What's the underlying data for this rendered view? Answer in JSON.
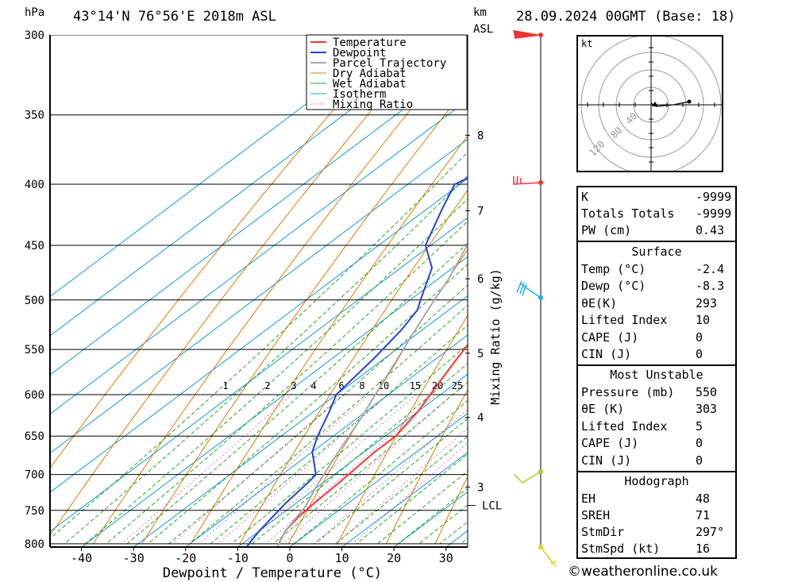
{
  "header": {
    "hpa_label": "hPa",
    "location": "43°14'N  76°56'E  2018m  ASL",
    "km_label": "km",
    "asl_label": "ASL",
    "datetime": "28.09.2024  00GMT  (Base: 18)"
  },
  "colors": {
    "temperature": "#ff3333",
    "dewpoint": "#2244dd",
    "parcel": "#aaaaaa",
    "dry_adiabat": "#e07b00",
    "wet_adiabat": "#22aa22",
    "isotherm": "#1199dd",
    "mixing_ratio": "#cc00aa"
  },
  "legend": [
    "Temperature",
    "Dewpoint",
    "Parcel Trajectory",
    "Dry Adiabat",
    "Wet Adiabat",
    "Isotherm",
    "Mixing Ratio"
  ],
  "chart_data": {
    "type": "line",
    "title": "",
    "xlabel": "Dewpoint / Temperature (°C)",
    "ylabel": "hPa",
    "y2label": "Mixing Ratio (g/kg)",
    "xlim": [
      -47,
      33
    ],
    "ylim": [
      805,
      300
    ],
    "x_ticks": [
      -40,
      -30,
      -20,
      -10,
      0,
      10,
      20,
      30
    ],
    "pressure_ticks": [
      300,
      350,
      400,
      450,
      500,
      550,
      600,
      650,
      700,
      750,
      800
    ],
    "km_ticks": [
      {
        "label": "8",
        "p": 364
      },
      {
        "label": "7",
        "p": 421
      },
      {
        "label": "6",
        "p": 480
      },
      {
        "label": "5",
        "p": 554
      },
      {
        "label": "4",
        "p": 627
      },
      {
        "label": "3",
        "p": 717
      }
    ],
    "lcl": {
      "label": "LCL",
      "p": 743
    },
    "mixing_ratio_labels": [
      "1",
      "2",
      "3",
      "4",
      "6",
      "8",
      "10",
      "15",
      "20",
      "25"
    ],
    "series": [
      {
        "name": "Temperature",
        "points": [
          [
            -2.4,
            805
          ],
          [
            -3.5,
            795
          ],
          [
            -5,
            780
          ],
          [
            -6,
            760
          ],
          [
            -6.5,
            740
          ],
          [
            -7,
            710
          ],
          [
            -7.5,
            690
          ],
          [
            -8,
            670
          ],
          [
            -8,
            650
          ],
          [
            -10,
            620
          ],
          [
            -13,
            590
          ],
          [
            -16,
            560
          ],
          [
            -19,
            530
          ],
          [
            -22,
            500
          ],
          [
            -23.5,
            470
          ],
          [
            -26,
            450
          ],
          [
            -29,
            420
          ],
          [
            -32,
            400
          ],
          [
            -36,
            375
          ],
          [
            -40,
            350
          ],
          [
            -45,
            325
          ],
          [
            -50,
            300
          ]
        ]
      },
      {
        "name": "Dewpoint",
        "points": [
          [
            -8.3,
            805
          ],
          [
            -9,
            795
          ],
          [
            -10,
            780
          ],
          [
            -11,
            760
          ],
          [
            -12,
            740
          ],
          [
            -13,
            710
          ],
          [
            -13.5,
            700
          ],
          [
            -20,
            670
          ],
          [
            -23,
            650
          ],
          [
            -27,
            620
          ],
          [
            -30,
            600
          ],
          [
            -31,
            580
          ],
          [
            -32,
            560
          ],
          [
            -34,
            530
          ],
          [
            -36,
            510
          ],
          [
            -38,
            500
          ],
          [
            -44,
            470
          ],
          [
            -51,
            450
          ],
          [
            -57,
            420
          ],
          [
            -61,
            400
          ],
          [
            -55,
            370
          ],
          [
            -50,
            350
          ],
          [
            -55,
            325
          ],
          [
            -60,
            300
          ]
        ]
      },
      {
        "name": "Parcel Trajectory",
        "points": [
          [
            -2.4,
            805
          ],
          [
            -5,
            780
          ],
          [
            -7.5,
            743
          ],
          [
            -10,
            720
          ],
          [
            -13,
            690
          ],
          [
            -16,
            660
          ],
          [
            -19,
            630
          ],
          [
            -22.5,
            600
          ],
          [
            -26,
            570
          ],
          [
            -30,
            540
          ],
          [
            -34,
            510
          ],
          [
            -38,
            480
          ],
          [
            -43,
            450
          ],
          [
            -48,
            420
          ],
          [
            -53,
            395
          ],
          [
            -59,
            370
          ],
          [
            -64,
            350
          ],
          [
            -71,
            325
          ],
          [
            -78,
            300
          ]
        ]
      }
    ]
  },
  "hodograph": {
    "unit_label": "kt",
    "ring_labels": [
      "40",
      "80",
      "120"
    ]
  },
  "indices": {
    "top": [
      {
        "label": "K",
        "value": "-9999"
      },
      {
        "label": "Totals Totals",
        "value": "-9999"
      },
      {
        "label": "PW (cm)",
        "value": "0.43"
      }
    ],
    "surface": {
      "title": "Surface",
      "rows": [
        {
          "label": "Temp (°C)",
          "value": "-2.4"
        },
        {
          "label": "Dewp (°C)",
          "value": "-8.3"
        },
        {
          "label": "θE(K)",
          "value": "293"
        },
        {
          "label": "Lifted Index",
          "value": "10"
        },
        {
          "label": "CAPE (J)",
          "value": "0"
        },
        {
          "label": "CIN (J)",
          "value": "0"
        }
      ]
    },
    "most_unstable": {
      "title": "Most Unstable",
      "rows": [
        {
          "label": "Pressure (mb)",
          "value": "550"
        },
        {
          "label": "θE (K)",
          "value": "303"
        },
        {
          "label": "Lifted Index",
          "value": "5"
        },
        {
          "label": "CAPE (J)",
          "value": "0"
        },
        {
          "label": "CIN (J)",
          "value": "0"
        }
      ]
    },
    "hodograph": {
      "title": "Hodograph",
      "rows": [
        {
          "label": "EH",
          "value": "48"
        },
        {
          "label": "SREH",
          "value": "71"
        },
        {
          "label": "StmDir",
          "value": "297°"
        },
        {
          "label": "StmSpd (kt)",
          "value": "16"
        }
      ]
    }
  },
  "credit": "©weatheronline.co.uk"
}
